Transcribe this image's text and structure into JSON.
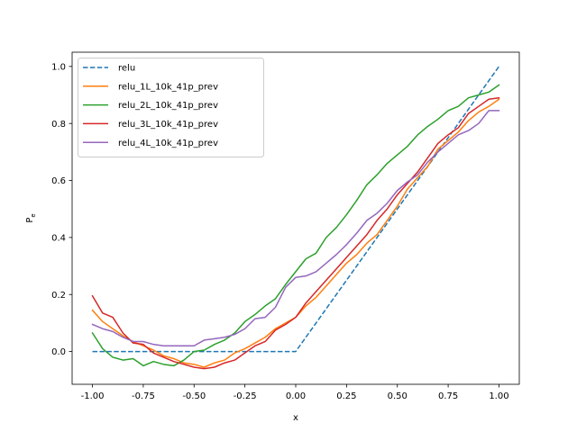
{
  "chart_data": {
    "type": "line",
    "xlabel": "x",
    "ylabel": "P_e",
    "xlim": [
      -1.1,
      1.1
    ],
    "ylim": [
      -0.115,
      1.05
    ],
    "xticks": [
      "-1.00",
      "-0.75",
      "-0.50",
      "-0.25",
      "0.00",
      "0.25",
      "0.50",
      "0.75",
      "1.00"
    ],
    "xtick_values": [
      -1.0,
      -0.75,
      -0.5,
      -0.25,
      0.0,
      0.25,
      0.5,
      0.75,
      1.0
    ],
    "yticks": [
      "0.0",
      "0.2",
      "0.4",
      "0.6",
      "0.8",
      "1.0"
    ],
    "ytick_values": [
      0.0,
      0.2,
      0.4,
      0.6,
      0.8,
      1.0
    ],
    "grid": false,
    "legend_position": "upper-left",
    "x": [
      -1.0,
      -0.95,
      -0.9,
      -0.85,
      -0.8,
      -0.75,
      -0.7,
      -0.65,
      -0.6,
      -0.55,
      -0.5,
      -0.45,
      -0.4,
      -0.35,
      -0.3,
      -0.25,
      -0.2,
      -0.15,
      -0.1,
      -0.05,
      0.0,
      0.05,
      0.1,
      0.15,
      0.2,
      0.25,
      0.3,
      0.35,
      0.4,
      0.45,
      0.5,
      0.55,
      0.6,
      0.65,
      0.7,
      0.75,
      0.8,
      0.85,
      0.9,
      0.95,
      1.0
    ],
    "series": [
      {
        "name": "relu",
        "color": "#1f77b4",
        "dash": "dashed",
        "values": [
          0,
          0,
          0,
          0,
          0,
          0,
          0,
          0,
          0,
          0,
          0,
          0,
          0,
          0,
          0,
          0,
          0,
          0,
          0,
          0,
          0,
          0.05,
          0.1,
          0.15,
          0.2,
          0.25,
          0.3,
          0.35,
          0.4,
          0.45,
          0.5,
          0.55,
          0.6,
          0.65,
          0.7,
          0.75,
          0.8,
          0.85,
          0.9,
          0.95,
          1.0
        ]
      },
      {
        "name": "relu_1L_10k_41p_prev",
        "color": "#ff7f0e",
        "dash": "solid",
        "values": [
          0.145,
          0.105,
          0.08,
          0.055,
          0.035,
          0.02,
          0.005,
          -0.015,
          -0.025,
          -0.04,
          -0.045,
          -0.055,
          -0.04,
          -0.03,
          -0.005,
          0.01,
          0.03,
          0.05,
          0.08,
          0.1,
          0.12,
          0.16,
          0.19,
          0.23,
          0.27,
          0.31,
          0.34,
          0.38,
          0.41,
          0.46,
          0.51,
          0.57,
          0.61,
          0.65,
          0.71,
          0.74,
          0.77,
          0.81,
          0.84,
          0.86,
          0.885
        ]
      },
      {
        "name": "relu_2L_10k_41p_prev",
        "color": "#2ca02c",
        "dash": "solid",
        "values": [
          0.065,
          0.01,
          -0.02,
          -0.03,
          -0.025,
          -0.05,
          -0.035,
          -0.045,
          -0.05,
          -0.03,
          0.0,
          0.005,
          0.025,
          0.04,
          0.065,
          0.105,
          0.13,
          0.16,
          0.185,
          0.235,
          0.28,
          0.325,
          0.345,
          0.4,
          0.435,
          0.48,
          0.53,
          0.585,
          0.62,
          0.66,
          0.69,
          0.72,
          0.76,
          0.79,
          0.815,
          0.845,
          0.86,
          0.89,
          0.9,
          0.91,
          0.935
        ]
      },
      {
        "name": "relu_3L_10k_41p_prev",
        "color": "#d62728",
        "dash": "solid",
        "values": [
          0.195,
          0.135,
          0.12,
          0.065,
          0.03,
          0.025,
          -0.005,
          -0.02,
          -0.035,
          -0.045,
          -0.055,
          -0.06,
          -0.055,
          -0.04,
          -0.03,
          -0.005,
          0.02,
          0.035,
          0.075,
          0.095,
          0.12,
          0.17,
          0.21,
          0.25,
          0.29,
          0.33,
          0.37,
          0.41,
          0.46,
          0.5,
          0.55,
          0.59,
          0.63,
          0.68,
          0.73,
          0.76,
          0.785,
          0.835,
          0.86,
          0.885,
          0.89
        ]
      },
      {
        "name": "relu_4L_10k_41p_prev",
        "color": "#9467bd",
        "dash": "solid",
        "values": [
          0.095,
          0.08,
          0.07,
          0.05,
          0.035,
          0.035,
          0.025,
          0.02,
          0.02,
          0.02,
          0.02,
          0.04,
          0.045,
          0.05,
          0.06,
          0.08,
          0.115,
          0.12,
          0.155,
          0.225,
          0.26,
          0.265,
          0.28,
          0.31,
          0.34,
          0.375,
          0.415,
          0.46,
          0.485,
          0.52,
          0.565,
          0.595,
          0.62,
          0.665,
          0.7,
          0.73,
          0.76,
          0.775,
          0.8,
          0.845,
          0.845
        ]
      }
    ]
  }
}
